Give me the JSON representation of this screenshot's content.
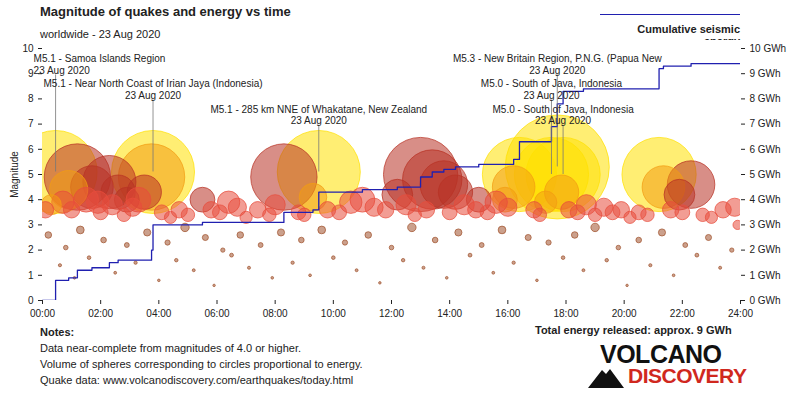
{
  "chart_data": {
    "type": "bubble",
    "title": "Magnitude of quakes and energy vs time",
    "subtitle": "worldwide - 23 Aug 2020",
    "y_label": "Magnitude",
    "xlim": [
      0,
      24
    ],
    "xticks": [
      {
        "value": 0,
        "label": "00:00"
      },
      {
        "value": 2,
        "label": "02:00"
      },
      {
        "value": 4,
        "label": "04:00"
      },
      {
        "value": 6,
        "label": "06:00"
      },
      {
        "value": 8,
        "label": "08:00"
      },
      {
        "value": 10,
        "label": "10:00"
      },
      {
        "value": 12,
        "label": "12:00"
      },
      {
        "value": 14,
        "label": "14:00"
      },
      {
        "value": 16,
        "label": "16:00"
      },
      {
        "value": 18,
        "label": "18:00"
      },
      {
        "value": 20,
        "label": "20:00"
      },
      {
        "value": 22,
        "label": "22:00"
      },
      {
        "value": 24,
        "label": "24:00"
      }
    ],
    "ylim": [
      0,
      10
    ],
    "yticks": [
      0,
      1,
      2,
      3,
      4,
      5,
      6,
      7,
      8,
      9,
      10
    ],
    "y2lim": [
      0,
      10
    ],
    "y2ticks": [
      {
        "value": 0,
        "label": "0 GWh"
      },
      {
        "value": 1,
        "label": "1 GWh"
      },
      {
        "value": 2,
        "label": "2 GWh"
      },
      {
        "value": 3,
        "label": "3 GWh"
      },
      {
        "value": 4,
        "label": "4 GWh"
      },
      {
        "value": 5,
        "label": "5 GWh"
      },
      {
        "value": 6,
        "label": "6 GWh"
      },
      {
        "value": 7,
        "label": "7 GWh"
      },
      {
        "value": 8,
        "label": "8 GWh"
      },
      {
        "value": 9,
        "label": "9 GWh"
      },
      {
        "value": 10,
        "label": "10 GWh"
      }
    ],
    "legend": "top-right",
    "series": [
      {
        "type": "bubble",
        "color": "#ffe000",
        "x": [
          0.45,
          3.8,
          9.5,
          16.4,
          17.5,
          17.7,
          17.9,
          21.2
        ],
        "values": [
          5.1,
          5.1,
          5.1,
          5.0,
          5.0,
          5.3,
          5.0,
          5.0
        ]
      },
      {
        "type": "bubble",
        "color": "#f39c12",
        "x": [
          0.9,
          3.75,
          9.3,
          16.2,
          17.85,
          21.35,
          0.3,
          15.9,
          17.3
        ],
        "values": [
          4.4,
          4.9,
          4.1,
          4.5,
          4.3,
          4.5,
          3.8,
          4.0,
          3.9
        ]
      },
      {
        "type": "bubble",
        "color": "#b83224",
        "x": [
          1.2,
          1.7,
          2.3,
          2.6,
          8.3,
          13.0,
          13.4,
          13.8,
          14.2,
          22.3,
          3.5,
          5.5,
          12.2,
          15.0,
          21.9,
          2.9
        ],
        "values": [
          4.9,
          4.5,
          4.7,
          4.3,
          4.9,
          5.0,
          4.8,
          4.6,
          4.3,
          4.6,
          4.3,
          4.0,
          4.2,
          4.0,
          4.2,
          4.0
        ]
      },
      {
        "type": "bubble",
        "color": "#e74c3c",
        "x": [
          0.1,
          0.7,
          1.0,
          1.5,
          1.9,
          2.0,
          2.4,
          2.8,
          3.1,
          3.3,
          4.1,
          4.4,
          4.7,
          5.0,
          5.8,
          6.1,
          6.4,
          6.7,
          7.0,
          7.4,
          7.8,
          8.0,
          8.8,
          9.0,
          9.8,
          10.2,
          10.6,
          11.0,
          11.4,
          11.8,
          12.5,
          12.8,
          13.2,
          14.0,
          14.5,
          14.9,
          15.3,
          15.6,
          16.0,
          16.9,
          17.1,
          18.1,
          18.4,
          18.7,
          19.0,
          19.3,
          19.6,
          19.9,
          20.2,
          20.5,
          20.8,
          21.6,
          22.0,
          22.7,
          23.0,
          23.4,
          23.8,
          23.9
        ],
        "values": [
          3.6,
          3.9,
          3.6,
          4.0,
          3.9,
          3.5,
          3.8,
          3.4,
          3.7,
          4.0,
          3.5,
          3.3,
          3.6,
          3.4,
          3.6,
          3.5,
          3.9,
          3.7,
          3.3,
          3.6,
          3.4,
          3.8,
          3.5,
          3.4,
          3.6,
          3.5,
          3.9,
          4.0,
          3.7,
          3.6,
          3.8,
          3.4,
          3.6,
          3.5,
          3.8,
          3.6,
          3.5,
          3.9,
          3.7,
          3.6,
          3.4,
          3.6,
          3.5,
          3.8,
          3.4,
          3.7,
          3.5,
          3.6,
          3.3,
          3.5,
          3.4,
          3.6,
          3.5,
          3.4,
          3.3,
          3.6,
          3.7,
          3.0
        ]
      },
      {
        "type": "bubble",
        "color": "#a0522d",
        "x": [
          0.2,
          0.6,
          0.8,
          1.1,
          1.3,
          1.6,
          2.1,
          2.5,
          2.9,
          3.2,
          3.6,
          4.0,
          4.3,
          4.6,
          4.9,
          5.2,
          5.6,
          5.9,
          6.2,
          6.5,
          6.8,
          7.1,
          7.5,
          7.9,
          8.2,
          8.6,
          8.9,
          9.2,
          9.6,
          10.0,
          10.4,
          10.8,
          11.2,
          11.6,
          12.0,
          12.4,
          12.7,
          13.1,
          13.5,
          13.9,
          14.3,
          14.7,
          15.1,
          15.5,
          15.8,
          16.2,
          16.7,
          17.0,
          17.4,
          17.9,
          18.3,
          18.6,
          19.0,
          19.4,
          19.8,
          20.1,
          20.5,
          20.9,
          21.3,
          21.7,
          22.1,
          22.5,
          22.9,
          23.3,
          23.7
        ],
        "values": [
          2.6,
          1.4,
          2.1,
          0.9,
          2.8,
          1.7,
          2.4,
          1.1,
          2.2,
          1.5,
          2.7,
          0.8,
          2.3,
          1.6,
          2.9,
          1.2,
          2.5,
          0.6,
          2.0,
          1.8,
          2.6,
          1.3,
          2.2,
          0.9,
          2.7,
          1.5,
          2.4,
          1.0,
          2.8,
          1.7,
          2.3,
          1.2,
          2.6,
          0.7,
          2.1,
          1.6,
          2.9,
          1.3,
          2.4,
          0.9,
          2.7,
          1.8,
          2.2,
          1.1,
          2.8,
          1.5,
          2.5,
          0.8,
          2.3,
          1.7,
          2.6,
          1.2,
          2.9,
          1.6,
          2.1,
          0.6,
          2.4,
          1.4,
          2.7,
          1.0,
          2.2,
          1.8,
          2.5,
          1.3,
          2.0
        ]
      },
      {
        "name": "Cumulative seismic energy",
        "type": "line",
        "axis": "y2",
        "color": "#2020b0",
        "line_style": "step",
        "x": [
          0,
          0.45,
          0.9,
          1.2,
          1.7,
          2.3,
          2.6,
          3.75,
          3.8,
          5.5,
          8.3,
          9.3,
          9.5,
          11.0,
          12.2,
          13.0,
          13.4,
          13.8,
          14.2,
          15.0,
          16.2,
          16.4,
          17.5,
          17.7,
          17.9,
          18.6,
          21.2,
          21.35,
          22.3,
          24
        ],
        "values": [
          0,
          0.8,
          0.9,
          1.2,
          1.3,
          1.5,
          1.6,
          2.0,
          3.0,
          3.1,
          3.5,
          3.6,
          4.3,
          4.4,
          4.5,
          4.9,
          5.1,
          5.2,
          5.3,
          5.4,
          5.6,
          6.3,
          6.9,
          7.8,
          8.3,
          8.4,
          9.2,
          9.3,
          9.4,
          9.4
        ]
      }
    ],
    "annotations": [
      {
        "x": 0.45,
        "y": 5.1,
        "text": "M5.1 - Samoa Islands Region",
        "date": "23 Aug 2020"
      },
      {
        "x": 3.8,
        "y": 5.1,
        "text": "M5.1 - Near North Coast of Irian Jaya (Indonesia)",
        "date": "23 Aug 2020"
      },
      {
        "x": 9.5,
        "y": 5.1,
        "text": "M5.1 - 285 km NNE of Whakatane, New Zealand",
        "date": "23 Aug 2020"
      },
      {
        "x": 17.7,
        "y": 5.3,
        "text": "M5.3 - New Britain Region, P.N.G. (Papua New",
        "date": "23 Aug 2020"
      },
      {
        "x": 17.5,
        "y": 5.0,
        "text": "M5.0 - South of Java, Indonesia",
        "date": "23 Aug 2020"
      },
      {
        "x": 17.9,
        "y": 5.0,
        "text": "M5.0 - South of Java, Indonesia",
        "date": "23 Aug 2020"
      }
    ],
    "notes_title": "Notes:",
    "notes": [
      "Data near-complete from magnitudes of 4.0 or higher.",
      "Volume of spheres corresponding to circles proportional to energy.",
      "Quake data: www.volcanodiscovery.com/earthquakes/today.html"
    ],
    "total_energy": "Total energy released: approx. 9 GWh",
    "logo": [
      "VOLCANO",
      "DISCOVERY"
    ]
  }
}
